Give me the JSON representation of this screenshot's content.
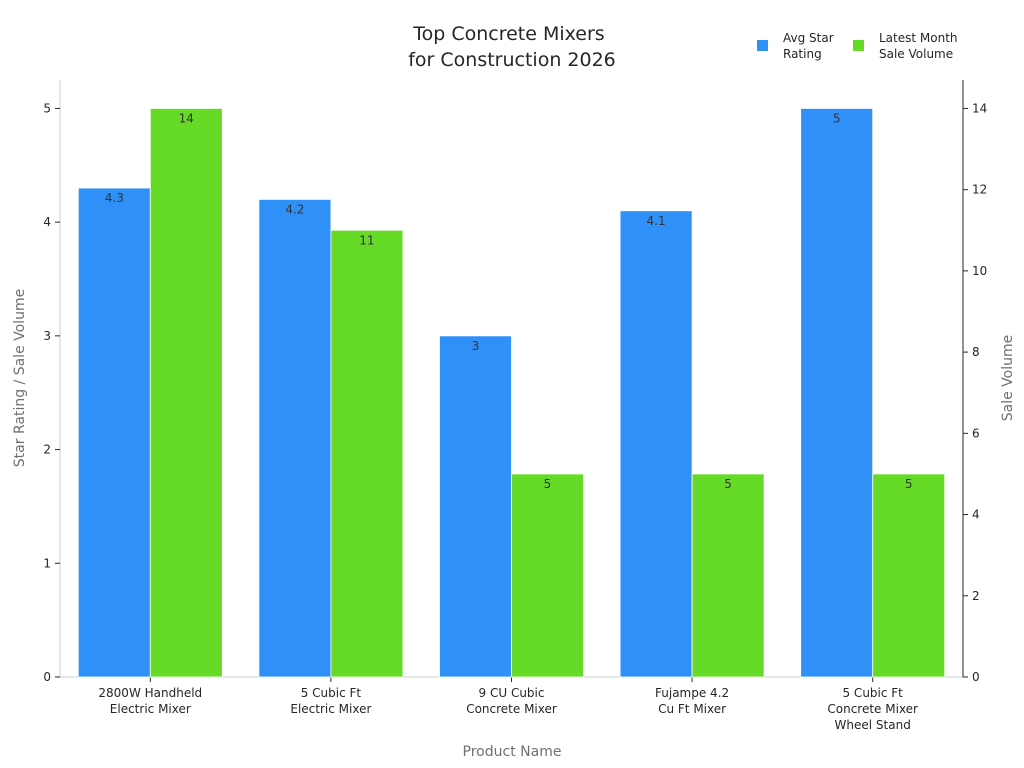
{
  "chart_data": {
    "type": "bar",
    "title": [
      "Top Concrete Mixers",
      "for Construction 2026"
    ],
    "xlabel": "Product Name",
    "ylabel_left": "Star Rating / Sale Volume",
    "ylabel_right": "Sale Volume",
    "categories": [
      [
        "2800W Handheld",
        "Electric Mixer"
      ],
      [
        "5 Cubic Ft",
        "Electric Mixer"
      ],
      [
        "9 CU Cubic",
        "Concrete Mixer"
      ],
      [
        "Fujampe 4.2",
        "Cu Ft Mixer"
      ],
      [
        "5 Cubic Ft",
        "Concrete Mixer",
        "Wheel Stand"
      ]
    ],
    "series": [
      {
        "name": [
          "Avg Star",
          "Rating"
        ],
        "axis": "left",
        "color": "#2f91f8",
        "values": [
          4.3,
          4.2,
          3,
          4.1,
          5
        ],
        "labels": [
          "4.3",
          "4.2",
          "3",
          "4.1",
          "5"
        ]
      },
      {
        "name": [
          "Latest Month",
          "Sale Volume"
        ],
        "axis": "right",
        "color": "#66db27",
        "values": [
          14,
          11,
          5,
          5,
          5
        ],
        "labels": [
          "14",
          "11",
          "5",
          "5",
          "5"
        ]
      }
    ],
    "ylim_left": [
      0,
      5.25
    ],
    "ylim_right": [
      0,
      14.7
    ],
    "yticks_left": [
      "0",
      "1",
      "2",
      "3",
      "4",
      "5"
    ],
    "yticks_right": [
      "0",
      "2",
      "4",
      "6",
      "8",
      "10",
      "12",
      "14"
    ],
    "grid": false,
    "legend": "top-right"
  }
}
